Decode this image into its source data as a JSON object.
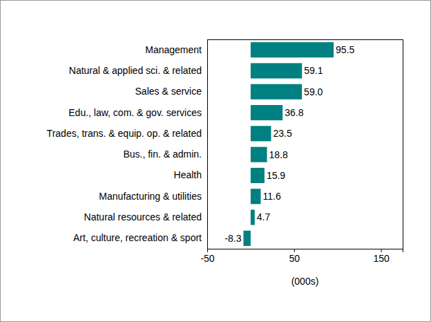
{
  "chart_data": {
    "type": "bar",
    "orientation": "horizontal",
    "categories": [
      "Management",
      "Natural & applied sci. & related",
      "Sales & service",
      "Edu., law, com. & gov. services",
      "Trades, trans. & equip. op. & related",
      "Bus., fin. & admin.",
      "Health",
      "Manufacturing & utilities",
      "Natural resources & related",
      "Art, culture, recreation & sport"
    ],
    "values": [
      95.5,
      59.1,
      59.0,
      36.8,
      23.5,
      18.8,
      15.9,
      11.6,
      4.7,
      -8.3
    ],
    "value_labels": [
      "95.5",
      "59.1",
      "59.0",
      "36.8",
      "23.5",
      "18.8",
      "15.9",
      "11.6",
      "4.7",
      "-8.3"
    ],
    "color": "#008080",
    "x_label": "(000s)",
    "xlim": [
      -50,
      175
    ],
    "xticks": [
      -50,
      50,
      150
    ],
    "grid": false,
    "data_labels": true
  }
}
